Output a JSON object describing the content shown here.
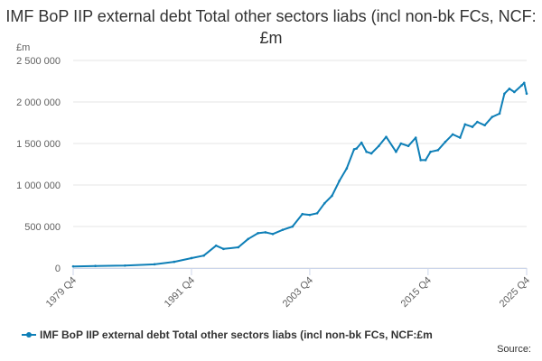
{
  "title": "IMF BoP IIP external debt Total other sectors liabs (incl non-bk FCs, NCF:£m",
  "source_label": "Source:",
  "colors": {
    "series": "#0e7fb7",
    "grid": "#e6e6e6",
    "axis": "#ccd6eb"
  },
  "chart_data": {
    "type": "line",
    "ylabel": "£m",
    "ylim": [
      0,
      2500000
    ],
    "yticks": [
      0,
      500000,
      1000000,
      1500000,
      2000000,
      2500000
    ],
    "ytick_labels": [
      "0",
      "500 000",
      "1 000 000",
      "1 500 000",
      "2 000 000",
      "2 500 000"
    ],
    "xlim": [
      1979.75,
      2025.75
    ],
    "xticks": [
      1979.75,
      1991.75,
      2003.75,
      2015.75,
      2025.75
    ],
    "xtick_labels": [
      "1979 Q4",
      "1991 Q4",
      "2003 Q4",
      "2015 Q4",
      "2025 Q4"
    ],
    "grid": true,
    "legend": "bottom",
    "series": [
      {
        "name": "IMF BoP IIP external debt Total other sectors liabs (incl non-bk FCs, NCF:£m",
        "x": [
          1979.75,
          1982,
          1985,
          1988,
          1990,
          1991.75,
          1993,
          1994.25,
          1995,
          1996.5,
          1997.5,
          1998.5,
          1999.25,
          2000,
          2001,
          2002,
          2003,
          2003.75,
          2004.5,
          2005.25,
          2006,
          2006.75,
          2007.5,
          2008.25,
          2008.5,
          2009,
          2009.5,
          2010,
          2010.75,
          2011.5,
          2012.5,
          2013,
          2013.75,
          2014.5,
          2015,
          2015.5,
          2016,
          2016.75,
          2017.5,
          2018.25,
          2019,
          2019.5,
          2020.25,
          2020.75,
          2021.5,
          2022.25,
          2023,
          2023.5,
          2024,
          2024.5,
          2025.25,
          2025.5,
          2025.75
        ],
        "values": [
          20000,
          25000,
          30000,
          45000,
          75000,
          120000,
          150000,
          270000,
          230000,
          250000,
          350000,
          420000,
          430000,
          410000,
          460000,
          500000,
          650000,
          640000,
          660000,
          780000,
          870000,
          1050000,
          1200000,
          1430000,
          1440000,
          1510000,
          1400000,
          1380000,
          1470000,
          1580000,
          1400000,
          1500000,
          1470000,
          1570000,
          1300000,
          1300000,
          1400000,
          1420000,
          1520000,
          1610000,
          1570000,
          1730000,
          1700000,
          1760000,
          1720000,
          1820000,
          1860000,
          2100000,
          2160000,
          2120000,
          2200000,
          2230000,
          2100000
        ]
      }
    ]
  }
}
